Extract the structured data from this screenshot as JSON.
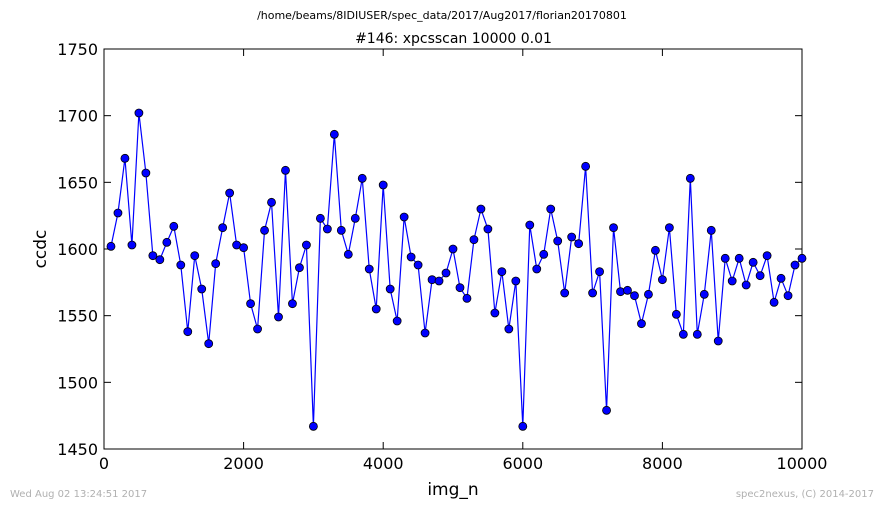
{
  "header": {
    "path": "/home/beams/8IDIUSER/spec_data/2017/Aug2017/florian20170801"
  },
  "footer": {
    "timestamp": "Wed Aug 02 13:24:51 2017",
    "credit": "spec2nexus, (C) 2014-2017"
  },
  "chart_data": {
    "type": "line",
    "title": "#146: xpcsscan 10000 0.01",
    "xlabel": "img_n",
    "ylabel": "ccdc",
    "xlim": [
      0,
      10000
    ],
    "ylim": [
      1450,
      1750
    ],
    "xticks": [
      0,
      2000,
      4000,
      6000,
      8000,
      10000
    ],
    "yticks": [
      1450,
      1500,
      1550,
      1600,
      1650,
      1700,
      1750
    ],
    "grid": false,
    "legend": "none",
    "colors": {
      "line": "#0000ff",
      "marker_fill": "#0000ff",
      "marker_edge": "#000000"
    },
    "series": [
      {
        "marker": "circle",
        "x": [
          100,
          200,
          300,
          400,
          500,
          600,
          700,
          800,
          900,
          1000,
          1100,
          1200,
          1300,
          1400,
          1500,
          1600,
          1700,
          1800,
          1900,
          2000,
          2100,
          2200,
          2300,
          2400,
          2500,
          2600,
          2700,
          2800,
          2900,
          3000,
          3100,
          3200,
          3300,
          3400,
          3500,
          3600,
          3700,
          3800,
          3900,
          4000,
          4100,
          4200,
          4300,
          4400,
          4500,
          4600,
          4700,
          4800,
          4900,
          5000,
          5100,
          5200,
          5300,
          5400,
          5500,
          5600,
          5700,
          5800,
          5900,
          6000,
          6100,
          6200,
          6300,
          6400,
          6500,
          6600,
          6700,
          6800,
          6900,
          7000,
          7100,
          7200,
          7300,
          7400,
          7500,
          7600,
          7700,
          7800,
          7900,
          8000,
          8100,
          8200,
          8300,
          8400,
          8500,
          8600,
          8700,
          8800,
          8900,
          9000,
          9100,
          9200,
          9300,
          9400,
          9500,
          9600,
          9700,
          9800,
          9900,
          10000
        ],
        "y": [
          1602,
          1627,
          1668,
          1603,
          1702,
          1657,
          1595,
          1592,
          1605,
          1617,
          1588,
          1538,
          1595,
          1570,
          1529,
          1589,
          1616,
          1642,
          1603,
          1601,
          1559,
          1540,
          1614,
          1635,
          1549,
          1659,
          1559,
          1586,
          1603,
          1467,
          1623,
          1615,
          1686,
          1614,
          1596,
          1623,
          1653,
          1585,
          1555,
          1648,
          1570,
          1546,
          1624,
          1594,
          1588,
          1537,
          1577,
          1576,
          1582,
          1600,
          1571,
          1563,
          1607,
          1630,
          1615,
          1552,
          1583,
          1540,
          1576,
          1467,
          1618,
          1585,
          1596,
          1630,
          1606,
          1567,
          1609,
          1604,
          1662,
          1567,
          1583,
          1479,
          1616,
          1568,
          1569,
          1565,
          1544,
          1566,
          1599,
          1577,
          1616,
          1551,
          1536,
          1653,
          1536,
          1566,
          1614,
          1531,
          1593,
          1576,
          1593,
          1573,
          1590,
          1580,
          1595,
          1560,
          1578,
          1565,
          1588,
          1593
        ]
      }
    ]
  }
}
